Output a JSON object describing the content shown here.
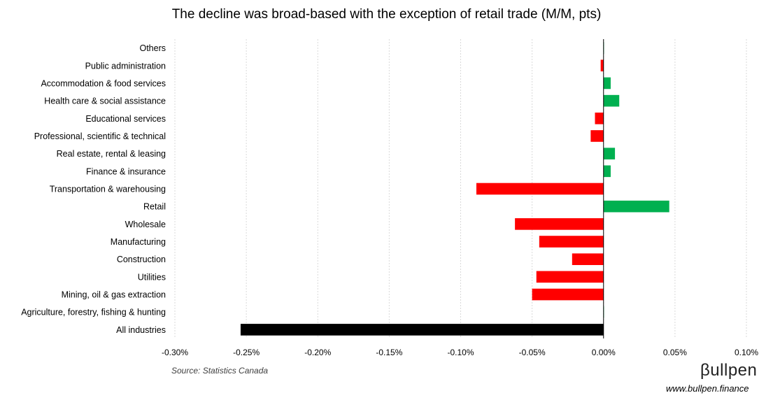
{
  "chart_data": {
    "type": "bar",
    "orientation": "horizontal",
    "title": "The decline was broad-based with the exception of retail trade (M/M, pts)",
    "categories": [
      "Others",
      "Public administration",
      "Accommodation & food services",
      "Health care & social assistance",
      "Educational services",
      "Professional, scientific & technical",
      "Real estate, rental & leasing",
      "Finance & insurance",
      "Transportation & warehousing",
      "Retail",
      "Wholesale",
      "Manufacturing",
      "Construction",
      "Utilities",
      "Mining, oil & gas extraction",
      "Agriculture, forestry, fishing & hunting",
      "All industries"
    ],
    "values": [
      0.0003,
      -0.002,
      0.005,
      0.011,
      -0.006,
      -0.009,
      0.008,
      0.005,
      -0.089,
      0.046,
      -0.062,
      -0.045,
      -0.022,
      -0.047,
      -0.05,
      0.0003,
      -0.254
    ],
    "xlim": [
      -0.3,
      0.1
    ],
    "xticks": [
      -0.3,
      -0.25,
      -0.2,
      -0.15,
      -0.1,
      -0.05,
      0.0,
      0.05,
      0.1
    ],
    "xtick_labels": [
      "-0.30%",
      "-0.25%",
      "-0.20%",
      "-0.15%",
      "-0.10%",
      "-0.05%",
      "0.00%",
      "0.05%",
      "0.10%"
    ],
    "grid": true,
    "xlabel": "",
    "ylabel": "",
    "colors": {
      "negative": "#ff0000",
      "positive": "#00b050",
      "total": "#000000",
      "grid": "#d9d9d9",
      "axis": "#000000"
    }
  },
  "footer": {
    "source": "Source: Statistics Canada",
    "brand": "βullpen",
    "url": "www.bullpen.finance"
  }
}
